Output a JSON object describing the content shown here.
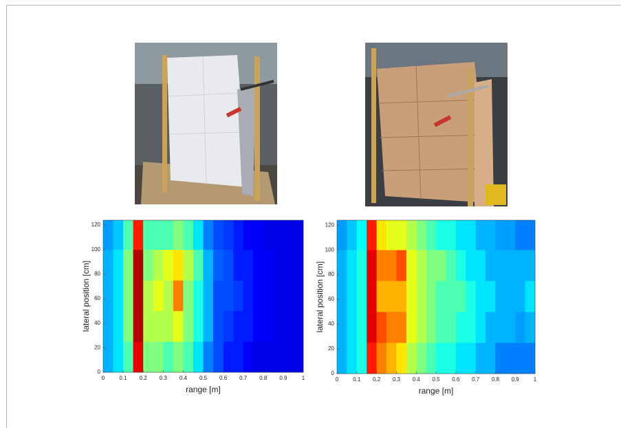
{
  "chart_data": [
    {
      "type": "heatmap",
      "xlabel": "range [m]",
      "ylabel": "lateral position [cm]",
      "xlim": [
        0,
        1
      ],
      "ylim": [
        0,
        124
      ],
      "xticks": [
        0,
        0.1,
        0.2,
        0.3,
        0.4,
        0.5,
        0.6,
        0.7,
        0.8,
        0.9,
        1
      ],
      "yticks": [
        0,
        20,
        40,
        60,
        80,
        100,
        120
      ],
      "xbins": [
        0,
        0.05,
        0.1,
        0.15,
        0.2,
        0.25,
        0.3,
        0.35,
        0.4,
        0.45,
        0.5,
        0.55,
        0.6,
        0.65,
        0.7,
        0.75,
        0.8,
        0.85,
        0.9,
        0.95,
        1
      ],
      "ybins": [
        0,
        25,
        50,
        75,
        100,
        124
      ],
      "values": [
        [
          0.3,
          0.35,
          0.45,
          0.9,
          0.5,
          0.5,
          0.45,
          0.5,
          0.45,
          0.35,
          0.25,
          0.2,
          0.15,
          0.15,
          0.12,
          0.1,
          0.1,
          0.1,
          0.1,
          0.1
        ],
        [
          0.3,
          0.35,
          0.5,
          0.95,
          0.55,
          0.55,
          0.55,
          0.6,
          0.5,
          0.4,
          0.3,
          0.2,
          0.18,
          0.15,
          0.15,
          0.12,
          0.12,
          0.1,
          0.1,
          0.1
        ],
        [
          0.3,
          0.35,
          0.5,
          0.95,
          0.55,
          0.6,
          0.55,
          0.75,
          0.5,
          0.4,
          0.3,
          0.2,
          0.2,
          0.18,
          0.15,
          0.12,
          0.12,
          0.1,
          0.1,
          0.1
        ],
        [
          0.3,
          0.35,
          0.5,
          0.95,
          0.5,
          0.55,
          0.6,
          0.65,
          0.55,
          0.45,
          0.3,
          0.22,
          0.2,
          0.15,
          0.15,
          0.12,
          0.12,
          0.1,
          0.1,
          0.1
        ],
        [
          0.28,
          0.32,
          0.45,
          0.85,
          0.45,
          0.45,
          0.45,
          0.5,
          0.45,
          0.35,
          0.25,
          0.2,
          0.18,
          0.15,
          0.12,
          0.12,
          0.1,
          0.1,
          0.1,
          0.1
        ]
      ]
    },
    {
      "type": "heatmap",
      "xlabel": "range [m]",
      "ylabel": "lateral position [cm]",
      "xlim": [
        0,
        1
      ],
      "ylim": [
        0,
        124
      ],
      "xticks": [
        0,
        0.1,
        0.2,
        0.3,
        0.4,
        0.5,
        0.6,
        0.7,
        0.8,
        0.9,
        1
      ],
      "yticks": [
        0,
        20,
        40,
        60,
        80,
        100,
        120
      ],
      "xbins": [
        0,
        0.05,
        0.1,
        0.15,
        0.2,
        0.25,
        0.3,
        0.35,
        0.4,
        0.45,
        0.5,
        0.55,
        0.6,
        0.65,
        0.7,
        0.75,
        0.8,
        0.85,
        0.9,
        0.95,
        1
      ],
      "ybins": [
        0,
        25,
        50,
        75,
        100,
        124
      ],
      "values": [
        [
          0.3,
          0.35,
          0.4,
          0.85,
          0.75,
          0.7,
          0.65,
          0.55,
          0.5,
          0.45,
          0.4,
          0.4,
          0.35,
          0.35,
          0.3,
          0.3,
          0.25,
          0.25,
          0.25,
          0.25
        ],
        [
          0.3,
          0.35,
          0.4,
          0.9,
          0.8,
          0.75,
          0.75,
          0.6,
          0.55,
          0.5,
          0.45,
          0.45,
          0.4,
          0.4,
          0.35,
          0.3,
          0.3,
          0.3,
          0.28,
          0.3
        ],
        [
          0.3,
          0.35,
          0.4,
          0.9,
          0.7,
          0.7,
          0.7,
          0.6,
          0.55,
          0.5,
          0.45,
          0.45,
          0.45,
          0.4,
          0.35,
          0.35,
          0.3,
          0.3,
          0.3,
          0.35
        ],
        [
          0.3,
          0.35,
          0.4,
          0.9,
          0.75,
          0.75,
          0.8,
          0.6,
          0.55,
          0.5,
          0.5,
          0.45,
          0.4,
          0.35,
          0.35,
          0.3,
          0.3,
          0.3,
          0.3,
          0.3
        ],
        [
          0.28,
          0.32,
          0.38,
          0.85,
          0.65,
          0.6,
          0.6,
          0.55,
          0.5,
          0.45,
          0.4,
          0.4,
          0.35,
          0.35,
          0.3,
          0.3,
          0.28,
          0.28,
          0.25,
          0.25
        ]
      ]
    }
  ]
}
